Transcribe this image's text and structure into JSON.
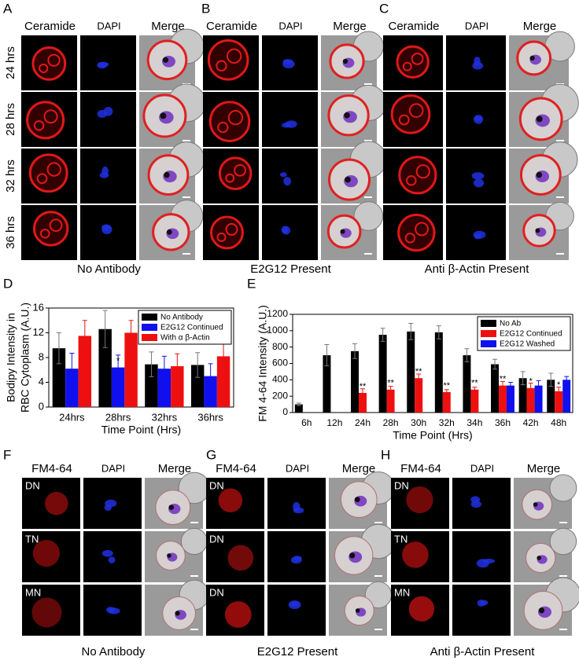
{
  "panels": [
    {
      "letter": "A",
      "columns": [
        "Ceramide",
        "DAPI",
        "Merge"
      ],
      "rows": [
        "24 hrs",
        "28 hrs",
        "32 hrs",
        "36 hrs"
      ],
      "caption": "No Antibody"
    },
    {
      "letter": "B",
      "columns": [
        "Ceramide",
        "DAPI",
        "Merge"
      ],
      "caption": "E2G12 Present"
    },
    {
      "letter": "C",
      "columns": [
        "Ceramide",
        "DAPI",
        "Merge"
      ],
      "caption": "Anti  β-Actin Present"
    },
    {
      "letter": "F",
      "columns": [
        "FM4-64",
        "DAPI",
        "Merge"
      ],
      "row_tags": [
        "DN",
        "TN",
        "MN"
      ],
      "caption": "No Antibody"
    },
    {
      "letter": "G",
      "columns": [
        "FM4-64",
        "DAPI",
        "Merge"
      ],
      "row_tags": [
        "DN",
        "DN",
        "DN"
      ],
      "caption": "E2G12 Present"
    },
    {
      "letter": "H",
      "columns": [
        "FM4-64",
        "DAPI",
        "Merge"
      ],
      "row_tags": [
        "DN",
        "TN",
        "MN"
      ],
      "caption": "Anti  β-Actin Present"
    }
  ],
  "chart_data": [
    {
      "type": "bar",
      "label": "D",
      "ylabel": [
        "Bodipy Intensity in",
        "RBC Cytoplasm (A.U.)"
      ],
      "xlabel": "Time Point (Hrs)",
      "categories": [
        "24hrs",
        "28hrs",
        "32hrs",
        "36hrs"
      ],
      "series": [
        {
          "name": "No Antibody",
          "color": "#000000",
          "values": [
            9.5,
            12.6,
            6.9,
            6.8
          ],
          "errors": [
            2.5,
            3,
            2,
            2
          ]
        },
        {
          "name": "E2G12 Continued",
          "color": "#1010ee",
          "values": [
            6.2,
            6.4,
            6.2,
            5.0
          ],
          "errors": [
            2.5,
            2,
            2,
            2
          ],
          "significance": [
            null,
            "*",
            null,
            null
          ]
        },
        {
          "name": "With α β-Actin",
          "color": "#ee1010",
          "values": [
            11.5,
            12,
            6.6,
            8.2
          ],
          "errors": [
            2.5,
            2,
            2,
            2
          ]
        }
      ],
      "ylim": [
        0,
        16
      ],
      "yticks": [
        0,
        4,
        8,
        12,
        16
      ],
      "legend": "upper right"
    },
    {
      "type": "bar",
      "label": "E",
      "ylabel": [
        "FM 4-64 Intensity (A.U.)"
      ],
      "xlabel": "Time Point (Hrs)",
      "categories": [
        "6h",
        "12h",
        "24h",
        "28h",
        "30h",
        "32h",
        "34h",
        "36h",
        "42h",
        "48h"
      ],
      "series": [
        {
          "name": "No Ab",
          "color": "#000000",
          "values": [
            100,
            700,
            750,
            950,
            990,
            980,
            700,
            590,
            420,
            400
          ],
          "errors": [
            15,
            130,
            90,
            80,
            100,
            80,
            80,
            60,
            80,
            80
          ]
        },
        {
          "name": "E2G12 Continued",
          "color": "#ee1010",
          "values": [
            null,
            null,
            240,
            280,
            420,
            250,
            280,
            330,
            300,
            260
          ],
          "errors": [
            null,
            null,
            50,
            40,
            50,
            30,
            30,
            50,
            60,
            50
          ],
          "significance": [
            null,
            null,
            "**",
            "**",
            "**",
            "**",
            "**",
            "**",
            "*",
            "*"
          ]
        },
        {
          "name": "E2G12 Washed",
          "color": "#1010ee",
          "values": [
            null,
            null,
            null,
            null,
            null,
            null,
            null,
            330,
            330,
            400
          ],
          "errors": [
            null,
            null,
            null,
            null,
            null,
            null,
            null,
            40,
            60,
            40
          ]
        }
      ],
      "ylim": [
        0,
        1200
      ],
      "yticks": [
        0,
        200,
        400,
        600,
        800,
        1000,
        1200
      ],
      "legend": "upper right"
    }
  ]
}
